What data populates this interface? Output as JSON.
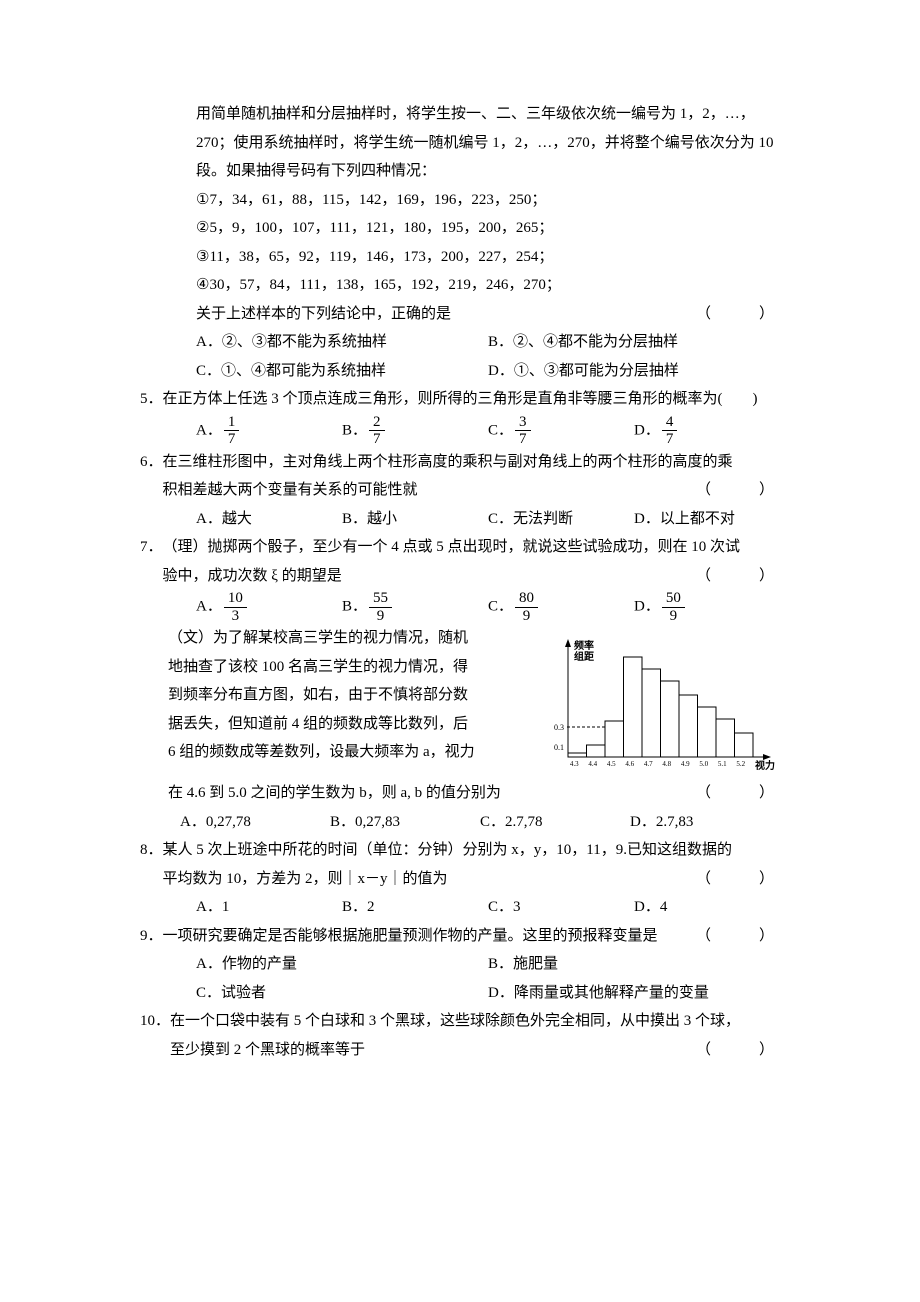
{
  "intro": {
    "l1": "用简单随机抽样和分层抽样时，将学生按一、二、三年级依次统一编号为 1，2，…，",
    "l2": "270；使用系统抽样时，将学生统一随机编号 1，2，…，270，并将整个编号依次分为 10",
    "l3": "段。如果抽得号码有下列四种情况：",
    "c1": "①7，34，61，88，115，142，169，196，223，250；",
    "c2": "②5，9，100，107，111，121，180，195，200，265；",
    "c3": "③11，38，65，92，119，146，173，200，227，254；",
    "c4": "④30，57，84，111，138，165，192，219，246，270；",
    "stem": "关于上述样本的下列结论中，正确的是",
    "optA": "A．②、③都不能为系统抽样",
    "optB": "B．②、④都不能为分层抽样",
    "optC": "C．①、④都可能为系统抽样",
    "optD": "D．①、③都可能为分层抽样"
  },
  "q5": {
    "num": "5．",
    "stem": "在正方体上任选 3 个顶点连成三角形，则所得的三角形是直角非等腰三角形的概率为(　　)",
    "A_l": "A．",
    "A_n": "1",
    "A_d": "7",
    "B_l": "B．",
    "B_n": "2",
    "B_d": "7",
    "C_l": "C．",
    "C_n": "3",
    "C_d": "7",
    "D_l": "D．",
    "D_n": "4",
    "D_d": "7"
  },
  "q6": {
    "num": "6．",
    "stem1": "在三维柱形图中，主对角线上两个柱形高度的乘积与副对角线上的两个柱形的高度的乘",
    "stem2": "积相差越大两个变量有关系的可能性就",
    "A": "A．越大",
    "B": "B．越小",
    "C": "C．无法判断",
    "D": "D．以上都不对"
  },
  "q7": {
    "num": "7．",
    "li_stem1": "（理）抛掷两个骰子，至少有一个 4 点或 5 点出现时，就说这些试验成功，则在 10 次试",
    "li_stem2": "验中，成功次数 ξ 的期望是",
    "A_l": "A．",
    "A_n": "10",
    "A_d": "3",
    "B_l": "B．",
    "B_n": "55",
    "B_d": "9",
    "C_l": "C．",
    "C_n": "80",
    "C_d": "9",
    "D_l": "D．",
    "D_n": "50",
    "D_d": "9",
    "wen1": "（文）为了解某校高三学生的视力情况，随机",
    "wen2": "地抽查了该校 100 名高三学生的视力情况，得",
    "wen3": "到频率分布直方图，如右，由于不慎将部分数",
    "wen4": "据丢失，但知道前 4 组的频数成等比数列，后",
    "wen5": "6 组的频数成等差数列，设最大频率为 a，视力",
    "wen6": "在 4.6 到 5.0 之间的学生数为 b，则 a, b 的值分别为",
    "wA": "A．0,27,78",
    "wB": "B．0,27,83",
    "wC": "C．2.7,78",
    "wD": "D．2.7,83"
  },
  "q8": {
    "num": "8．",
    "stem1": "某人 5 次上班途中所花的时间（单位：分钟）分别为 x，y，10，11，9.已知这组数据的",
    "stem2": "平均数为 10，方差为 2，则｜x－y｜的值为",
    "A": "A．1",
    "B": "B．2",
    "C": "C．3",
    "D": "D．4"
  },
  "q9": {
    "num": "9．",
    "stem": "一项研究要确定是否能够根据施肥量预测作物的产量。这里的预报释变量是",
    "A": "A．作物的产量",
    "B": "B．施肥量",
    "C": "C．试验者",
    "D": "D．降雨量或其他解释产量的变量"
  },
  "q10": {
    "num": "10．",
    "stem1": "在一个口袋中装有 5 个白球和 3 个黑球，这些球除颜色外完全相同，从中摸出 3 个球，",
    "stem2": "至少摸到 2 个黑球的概率等于"
  },
  "paren": "（　　）",
  "chart": {
    "ylabel1": "频率",
    "ylabel2": "组距",
    "xlabel": "视力",
    "yticks": [
      "0.1",
      "0.3"
    ],
    "xticks": [
      "4.3",
      "4.4",
      "4.5",
      "4.6",
      "4.7",
      "4.8",
      "4.9",
      "5.0",
      "5.1",
      "5.2"
    ],
    "bars": [
      0.04,
      0.12,
      0.36,
      1.0,
      0.88,
      0.76,
      0.62,
      0.5,
      0.38,
      0.24
    ],
    "stroke": "#000000",
    "bg": "#ffffff",
    "font_size": 8
  }
}
